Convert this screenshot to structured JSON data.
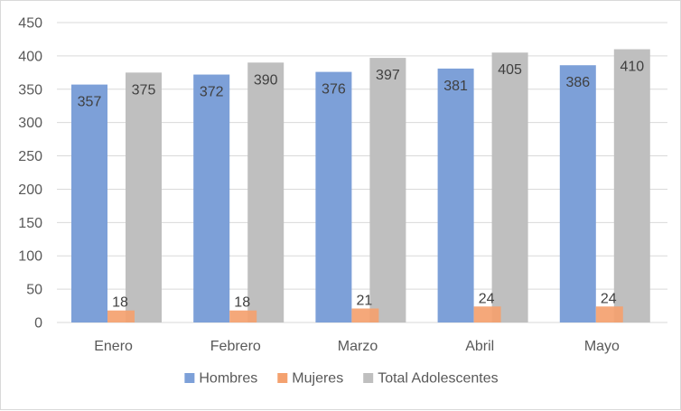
{
  "chart_data": {
    "type": "bar",
    "categories": [
      "Enero",
      "Febrero",
      "Marzo",
      "Abril",
      "Mayo"
    ],
    "series": [
      {
        "name": "Hombres",
        "values": [
          357,
          372,
          376,
          381,
          386
        ],
        "color": "#7da0d8"
      },
      {
        "name": "Mujeres",
        "values": [
          18,
          18,
          21,
          24,
          24
        ],
        "color": "#f4a16f"
      },
      {
        "name": "Total Adolescentes",
        "values": [
          375,
          390,
          397,
          405,
          410
        ],
        "color": "#bfbfbf"
      }
    ],
    "ylim": [
      0,
      450
    ],
    "yticks": [
      0,
      50,
      100,
      150,
      200,
      250,
      300,
      350,
      400,
      450
    ],
    "grid": true,
    "legend_position": "bottom",
    "data_labels": true
  }
}
